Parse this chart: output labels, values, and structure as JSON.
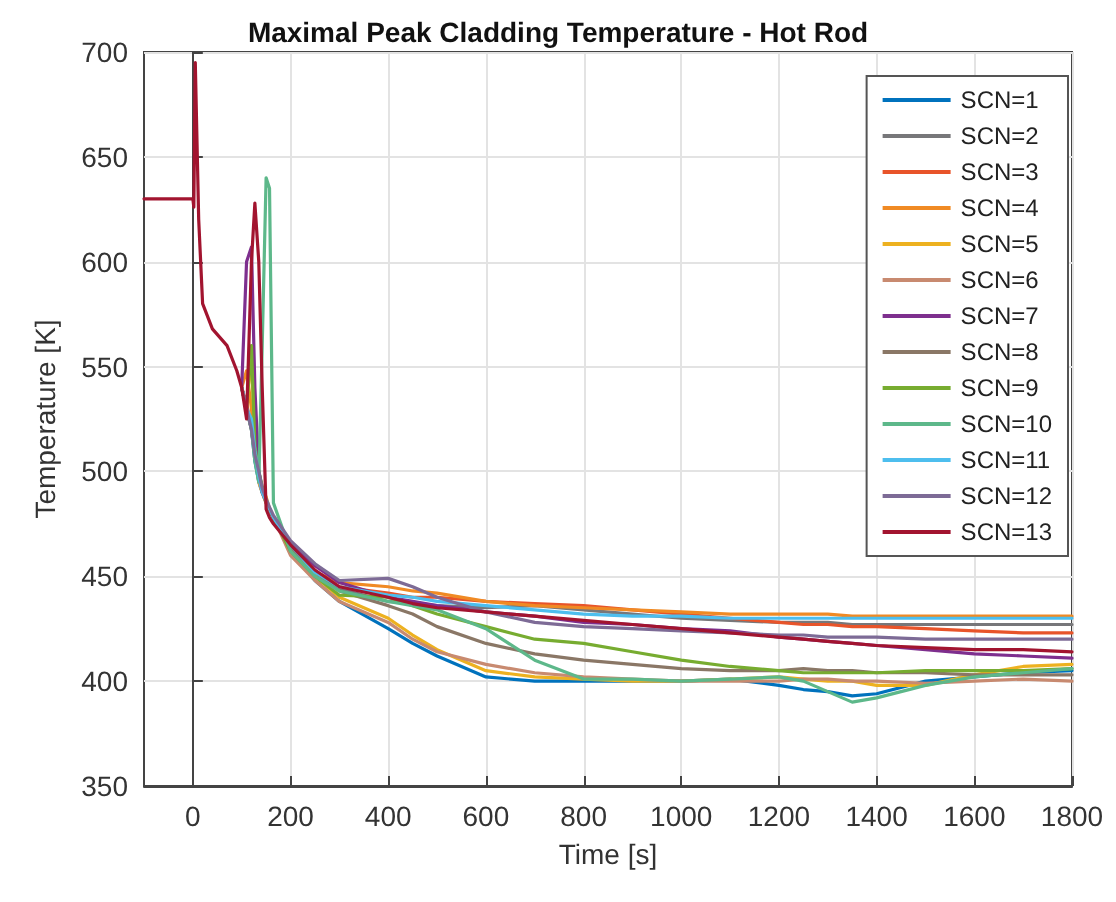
{
  "chart_data": {
    "type": "line",
    "title": "Maximal Peak Cladding Temperature - Hot Rod",
    "xlabel": "Time [s]",
    "ylabel": "Temperature [K]",
    "x": [
      -100,
      0,
      2,
      5,
      12,
      20,
      40,
      70,
      90,
      100,
      110,
      120,
      127,
      135,
      142,
      150,
      157,
      165,
      200,
      250,
      300,
      400,
      450,
      500,
      600,
      700,
      800,
      900,
      1000,
      1100,
      1200,
      1250,
      1300,
      1350,
      1400,
      1500,
      1600,
      1700,
      1800
    ],
    "series": [
      {
        "name": "SCN=1",
        "color": "#0072bd",
        "values": [
          null,
          null,
          null,
          null,
          null,
          null,
          null,
          null,
          null,
          540,
          530,
          520,
          505,
          495,
          490,
          485,
          482,
          478,
          462,
          448,
          438,
          425,
          418,
          412,
          402,
          400,
          400,
          400,
          400,
          401,
          398,
          396,
          395,
          393,
          394,
          400,
          402,
          404,
          405
        ]
      },
      {
        "name": "SCN=2",
        "color": "#77777a",
        "values": [
          null,
          null,
          null,
          null,
          null,
          null,
          null,
          null,
          null,
          540,
          530,
          522,
          510,
          500,
          493,
          486,
          482,
          478,
          465,
          452,
          444,
          438,
          437,
          436,
          435,
          436,
          434,
          432,
          430,
          429,
          428,
          428,
          428,
          427,
          427,
          427,
          427,
          427,
          427
        ]
      },
      {
        "name": "SCN=3",
        "color": "#e8542a",
        "values": [
          null,
          null,
          null,
          null,
          null,
          null,
          null,
          null,
          null,
          540,
          532,
          522,
          508,
          498,
          492,
          486,
          482,
          478,
          465,
          452,
          445,
          442,
          440,
          440,
          438,
          437,
          436,
          434,
          432,
          430,
          428,
          427,
          427,
          426,
          426,
          425,
          424,
          423,
          423
        ]
      },
      {
        "name": "SCN=4",
        "color": "#f08a24",
        "values": [
          null,
          null,
          null,
          null,
          null,
          null,
          null,
          null,
          null,
          540,
          548,
          530,
          510,
          498,
          490,
          485,
          482,
          478,
          465,
          452,
          447,
          445,
          443,
          442,
          438,
          436,
          435,
          434,
          433,
          432,
          432,
          432,
          432,
          431,
          431,
          431,
          431,
          431,
          431
        ]
      },
      {
        "name": "SCN=5",
        "color": "#edb120",
        "values": [
          null,
          null,
          null,
          null,
          null,
          null,
          null,
          null,
          null,
          540,
          530,
          556,
          510,
          495,
          490,
          488,
          482,
          478,
          462,
          450,
          440,
          430,
          422,
          415,
          405,
          402,
          401,
          400,
          400,
          401,
          402,
          401,
          400,
          400,
          398,
          398,
          403,
          407,
          408
        ]
      },
      {
        "name": "SCN=6",
        "color": "#c88a70",
        "values": [
          null,
          null,
          null,
          null,
          null,
          null,
          null,
          null,
          null,
          540,
          530,
          520,
          508,
          496,
          490,
          486,
          482,
          478,
          460,
          448,
          438,
          428,
          420,
          414,
          408,
          404,
          402,
          401,
          400,
          400,
          400,
          401,
          401,
          400,
          400,
          399,
          400,
          401,
          400
        ]
      },
      {
        "name": "SCN=7",
        "color": "#7e2f8e",
        "values": [
          null,
          null,
          null,
          null,
          null,
          null,
          null,
          null,
          null,
          540,
          600,
          607,
          540,
          500,
          490,
          486,
          482,
          478,
          466,
          455,
          447,
          440,
          438,
          436,
          433,
          431,
          428,
          427,
          425,
          424,
          421,
          420,
          419,
          418,
          417,
          415,
          413,
          412,
          411
        ]
      },
      {
        "name": "SCN=8",
        "color": "#8a7766",
        "values": [
          null,
          null,
          null,
          null,
          null,
          null,
          null,
          null,
          null,
          540,
          530,
          520,
          508,
          498,
          492,
          486,
          482,
          478,
          464,
          452,
          443,
          436,
          432,
          426,
          418,
          413,
          410,
          408,
          406,
          405,
          405,
          406,
          405,
          405,
          404,
          404,
          403,
          403,
          403
        ]
      },
      {
        "name": "SCN=9",
        "color": "#77ac30",
        "values": [
          null,
          null,
          null,
          null,
          null,
          null,
          null,
          null,
          null,
          540,
          530,
          560,
          512,
          500,
          492,
          486,
          482,
          478,
          462,
          450,
          441,
          440,
          436,
          432,
          426,
          420,
          418,
          414,
          410,
          407,
          405,
          404,
          404,
          404,
          404,
          405,
          405,
          405,
          406
        ]
      },
      {
        "name": "SCN=10",
        "color": "#5db88a",
        "values": [
          null,
          null,
          null,
          null,
          null,
          null,
          null,
          null,
          null,
          540,
          530,
          520,
          505,
          495,
          560,
          640,
          635,
          485,
          462,
          450,
          443,
          438,
          436,
          434,
          425,
          410,
          401,
          401,
          400,
          401,
          402,
          400,
          395,
          390,
          392,
          398,
          402,
          404,
          406
        ]
      },
      {
        "name": "SCN=11",
        "color": "#4dbeee",
        "values": [
          null,
          null,
          null,
          null,
          null,
          null,
          null,
          null,
          null,
          540,
          530,
          525,
          510,
          498,
          490,
          486,
          482,
          478,
          465,
          452,
          445,
          441,
          440,
          438,
          436,
          434,
          432,
          431,
          431,
          430,
          430,
          430,
          430,
          430,
          430,
          430,
          430,
          430,
          430
        ]
      },
      {
        "name": "SCN=12",
        "color": "#7d6b96",
        "values": [
          null,
          null,
          null,
          null,
          null,
          null,
          null,
          null,
          null,
          540,
          530,
          520,
          508,
          500,
          492,
          487,
          483,
          479,
          467,
          456,
          448,
          449,
          445,
          440,
          433,
          428,
          426,
          425,
          424,
          423,
          422,
          422,
          421,
          421,
          421,
          420,
          420,
          420,
          420
        ]
      },
      {
        "name": "SCN=13",
        "color": "#a2142f",
        "values": [
          630,
          630,
          626,
          695,
          620,
          580,
          568,
          560,
          548,
          540,
          525,
          600,
          628,
          600,
          540,
          482,
          478,
          475,
          465,
          453,
          445,
          440,
          437,
          435,
          433,
          431,
          429,
          427,
          425,
          423,
          421,
          420,
          419,
          418,
          417,
          416,
          415,
          415,
          414
        ]
      }
    ],
    "xlim": [
      -100,
      1800
    ],
    "xticks": [
      0,
      200,
      400,
      600,
      800,
      1000,
      1200,
      1400,
      1600,
      1800
    ],
    "ylim": [
      350,
      700
    ],
    "yticks": [
      350,
      400,
      450,
      500,
      550,
      600,
      650,
      700
    ],
    "grid": true,
    "legend": "top right",
    "marker": "none",
    "line_style": "solid"
  }
}
